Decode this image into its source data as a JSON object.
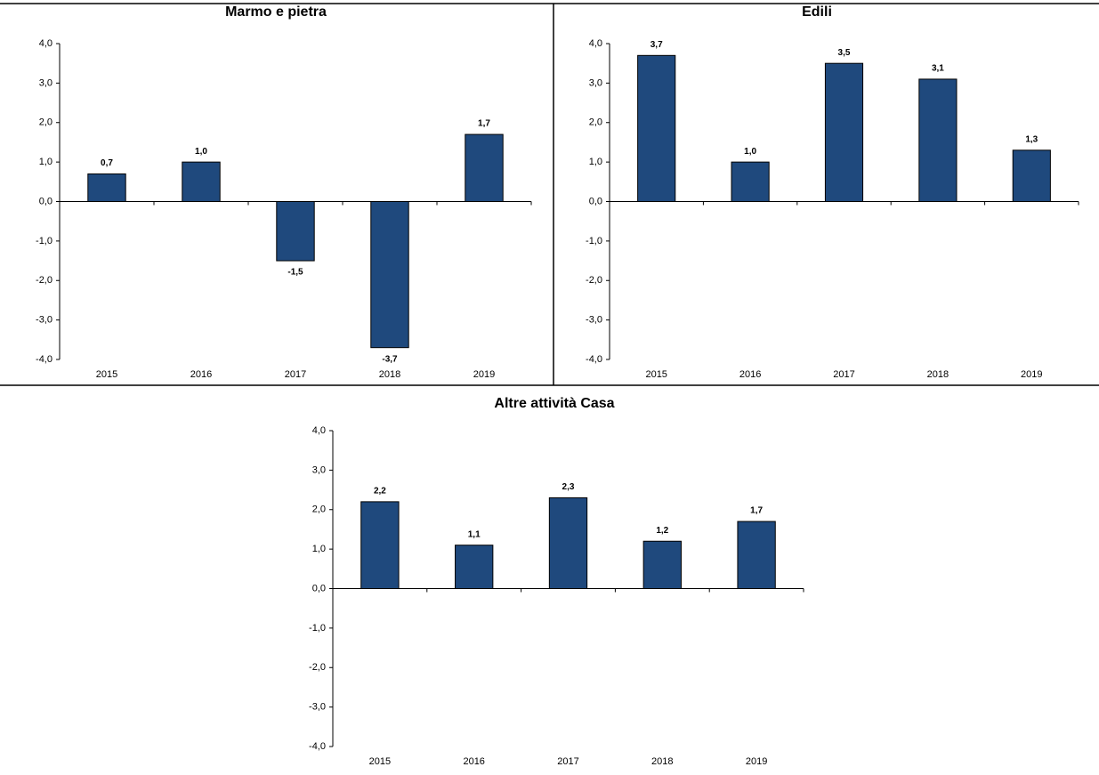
{
  "chart_data": [
    {
      "type": "bar",
      "title": "Marmo e pietra",
      "categories": [
        "2015",
        "2016",
        "2017",
        "2018",
        "2019"
      ],
      "values": [
        0.7,
        1.0,
        -1.5,
        -3.7,
        1.7
      ],
      "value_labels": [
        "0,7",
        "1,0",
        "-1,5",
        "-3,7",
        "1,7"
      ],
      "color": "#1f497d",
      "ylim": [
        -4,
        4
      ],
      "yticks": [
        {
          "value": -4,
          "label": "-4,0"
        },
        {
          "value": -3,
          "label": "-3,0"
        },
        {
          "value": -2,
          "label": "-2,0"
        },
        {
          "value": -1,
          "label": "-1,0"
        },
        {
          "value": 0,
          "label": "0,0"
        },
        {
          "value": 1,
          "label": "1,0"
        },
        {
          "value": 2,
          "label": "2,0"
        },
        {
          "value": 3,
          "label": "3,0"
        },
        {
          "value": 4,
          "label": "4,0"
        }
      ],
      "grid": false
    },
    {
      "type": "bar",
      "title": "Edili",
      "categories": [
        "2015",
        "2016",
        "2017",
        "2018",
        "2019"
      ],
      "values": [
        3.7,
        1.0,
        3.5,
        3.1,
        1.3
      ],
      "value_labels": [
        "3,7",
        "1,0",
        "3,5",
        "3,1",
        "1,3"
      ],
      "color": "#1f497d",
      "ylim": [
        -4,
        4
      ],
      "yticks": [
        {
          "value": -4,
          "label": "-4,0"
        },
        {
          "value": -3,
          "label": "-3,0"
        },
        {
          "value": -2,
          "label": "-2,0"
        },
        {
          "value": -1,
          "label": "-1,0"
        },
        {
          "value": 0,
          "label": "0,0"
        },
        {
          "value": 1,
          "label": "1,0"
        },
        {
          "value": 2,
          "label": "2,0"
        },
        {
          "value": 3,
          "label": "3,0"
        },
        {
          "value": 4,
          "label": "4,0"
        }
      ],
      "grid": false
    },
    {
      "type": "bar",
      "title": "Altre attività Casa",
      "categories": [
        "2015",
        "2016",
        "2017",
        "2018",
        "2019"
      ],
      "values": [
        2.2,
        1.1,
        2.3,
        1.2,
        1.7
      ],
      "value_labels": [
        "2,2",
        "1,1",
        "2,3",
        "1,2",
        "1,7"
      ],
      "color": "#1f497d",
      "ylim": [
        -4,
        4
      ],
      "yticks": [
        {
          "value": -4,
          "label": "-4,0"
        },
        {
          "value": -3,
          "label": "-3,0"
        },
        {
          "value": -2,
          "label": "-2,0"
        },
        {
          "value": -1,
          "label": "-1,0"
        },
        {
          "value": 0,
          "label": "0,0"
        },
        {
          "value": 1,
          "label": "1,0"
        },
        {
          "value": 2,
          "label": "2,0"
        },
        {
          "value": 3,
          "label": "3,0"
        },
        {
          "value": 4,
          "label": "4,0"
        }
      ],
      "grid": false
    }
  ]
}
